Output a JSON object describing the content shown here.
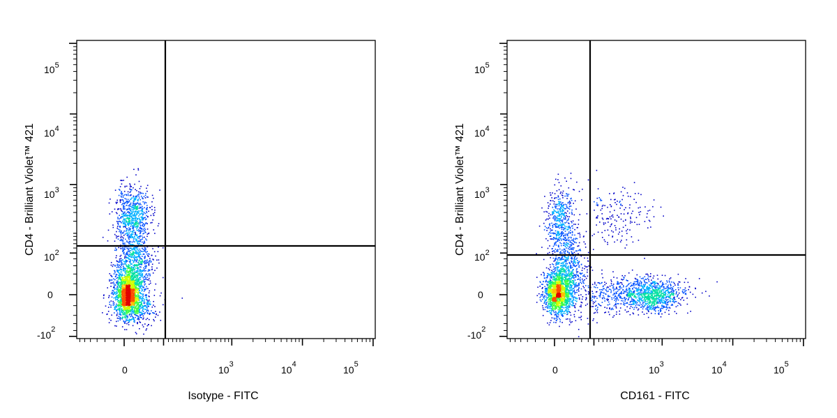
{
  "chart_data": [
    {
      "type": "scatter",
      "subtype": "flow-cytometry-density-dot-plot",
      "xlabel": "Isotype - FITC",
      "ylabel": "CD4 - Brilliant Violet™ 421",
      "x_scale": "biexponential",
      "y_scale": "biexponential",
      "x_tick_labels": [
        "0",
        "10^3",
        "10^4",
        "10^5"
      ],
      "y_tick_labels": [
        "-10^2",
        "0",
        "10^2",
        "10^3",
        "10^4",
        "10^5"
      ],
      "gate": {
        "x": 300,
        "y": 130
      },
      "populations": [
        {
          "x_range": [
            -120,
            200
          ],
          "y_range": [
            -150,
            100
          ],
          "density": "high"
        },
        {
          "x_range": [
            -120,
            200
          ],
          "y_range": [
            250,
            800
          ],
          "density": "medium"
        }
      ],
      "grid": false,
      "legend": "none"
    },
    {
      "type": "scatter",
      "subtype": "flow-cytometry-density-dot-plot",
      "xlabel": "CD161 - FITC",
      "ylabel": "CD4 - Brilliant Violet™ 421",
      "x_scale": "biexponential",
      "y_scale": "biexponential",
      "x_tick_labels": [
        "0",
        "10^3",
        "10^4",
        "10^5"
      ],
      "y_tick_labels": [
        "-10^2",
        "0",
        "10^2",
        "10^3",
        "10^4",
        "10^5"
      ],
      "gate": {
        "x": 300,
        "y": 95
      },
      "populations": [
        {
          "x_range": [
            -120,
            250
          ],
          "y_range": [
            -150,
            100
          ],
          "density": "high"
        },
        {
          "x_range": [
            -120,
            250
          ],
          "y_range": [
            200,
            800
          ],
          "density": "medium"
        },
        {
          "x_range": [
            300,
            1500
          ],
          "y_range": [
            -100,
            50
          ],
          "density": "medium"
        },
        {
          "x_range": [
            300,
            800
          ],
          "y_range": [
            200,
            1000
          ],
          "density": "low"
        }
      ],
      "grid": false,
      "legend": "none"
    }
  ],
  "panels": [
    {
      "xlabel": "Isotype - FITC",
      "ylabel": "CD4 - Brilliant Violet™ 421",
      "x_ticks": {
        "t0": "0",
        "t3": "10",
        "t3e": "3",
        "t4": "10",
        "t4e": "4",
        "t5": "10",
        "t5e": "5"
      },
      "y_ticks": {
        "neg": "-10",
        "nege": "2",
        "zero": "0",
        "t2": "10",
        "t2e": "2",
        "t3": "10",
        "t3e": "3",
        "t4": "10",
        "t4e": "4",
        "t5": "10",
        "t5e": "5"
      }
    },
    {
      "xlabel": "CD161 - FITC",
      "ylabel": "CD4 - Brilliant Violet™ 421",
      "x_ticks": {
        "t0": "0",
        "t3": "10",
        "t3e": "3",
        "t4": "10",
        "t4e": "4",
        "t5": "10",
        "t5e": "5"
      },
      "y_ticks": {
        "neg": "-10",
        "nege": "2",
        "zero": "0",
        "t2": "10",
        "t2e": "2",
        "t3": "10",
        "t3e": "3",
        "t4": "10",
        "t4e": "4",
        "t5": "10",
        "t5e": "5"
      }
    }
  ],
  "colors": {
    "density_scale": [
      "#0000c8",
      "#0050ff",
      "#00b0ff",
      "#00e0a0",
      "#40ff40",
      "#d0ff00",
      "#ffc000",
      "#ff5000",
      "#e00000"
    ],
    "gate_line": "#000000",
    "frame": "#000000"
  }
}
